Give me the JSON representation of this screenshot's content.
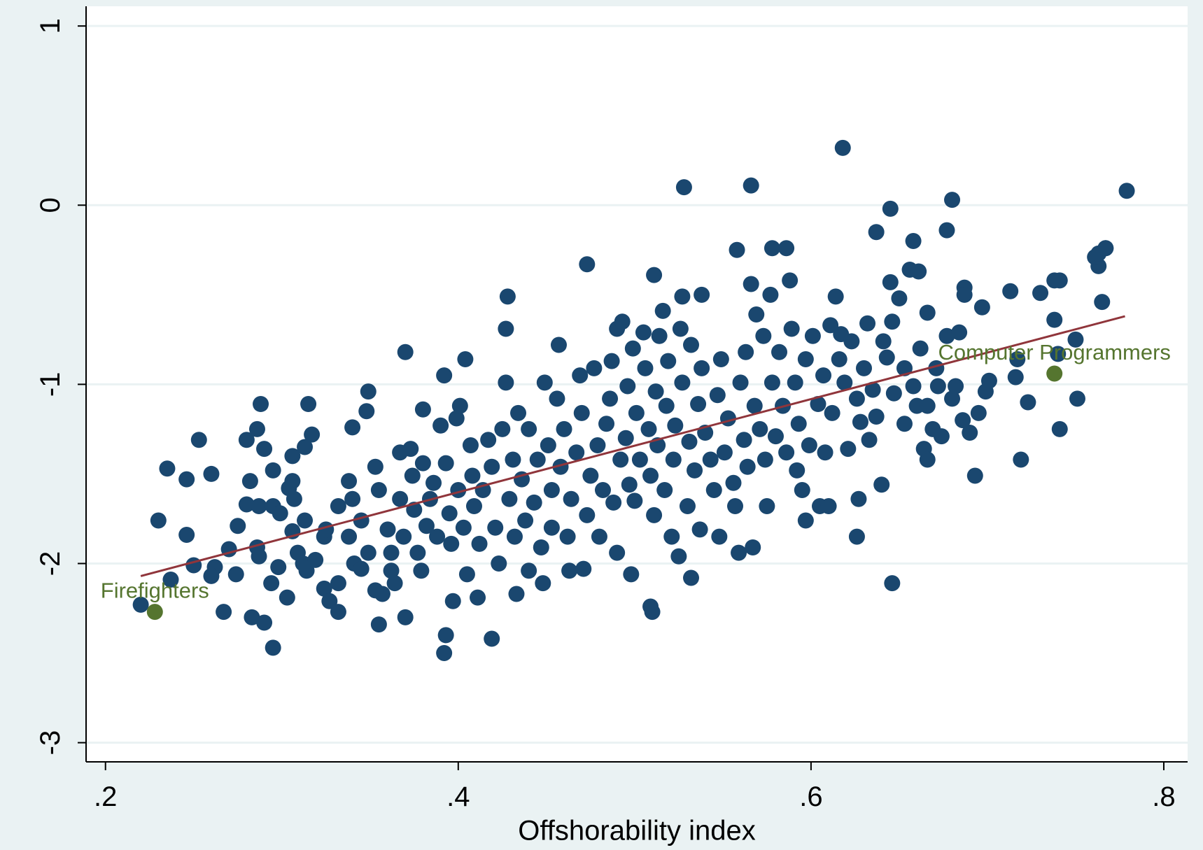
{
  "chart_data": {
    "type": "scatter",
    "x_label": "Offshorability index",
    "xlim": [
      0.189,
      0.8135
    ],
    "ylim": [
      -3.107,
      1.11
    ],
    "xticks": [
      {
        "value": 0.2,
        "label": ".2"
      },
      {
        "value": 0.4,
        "label": ".4"
      },
      {
        "value": 0.6,
        "label": ".6"
      },
      {
        "value": 0.8,
        "label": ".8"
      }
    ],
    "yticks": [
      1,
      0,
      -1,
      -2,
      -3
    ],
    "grid": true,
    "color": "#1a476f",
    "x": [
      0.618,
      0.528,
      0.566,
      0.779,
      0.68,
      0.645,
      0.637,
      0.677,
      0.658,
      0.558,
      0.578,
      0.586,
      0.767,
      0.473,
      0.511,
      0.428,
      0.427,
      0.37,
      0.404,
      0.527,
      0.538,
      0.713,
      0.687,
      0.741,
      0.763,
      0.697,
      0.765,
      0.666,
      0.738,
      0.751,
      0.741,
      0.719,
      0.693,
      0.646,
      0.626,
      0.627,
      0.64,
      0.532,
      0.51,
      0.419,
      0.392,
      0.393,
      0.355,
      0.37,
      0.295,
      0.29,
      0.283,
      0.267,
      0.22,
      0.237,
      0.23,
      0.235,
      0.246,
      0.253,
      0.26,
      0.246,
      0.25,
      0.262,
      0.26,
      0.274,
      0.27,
      0.275,
      0.28,
      0.28,
      0.286,
      0.288,
      0.29,
      0.282,
      0.295,
      0.287,
      0.295,
      0.299,
      0.286,
      0.287,
      0.294,
      0.303,
      0.298,
      0.306,
      0.315,
      0.317,
      0.313,
      0.306,
      0.304,
      0.307,
      0.313,
      0.306,
      0.309,
      0.314,
      0.312,
      0.324,
      0.327,
      0.332,
      0.34,
      0.349,
      0.348,
      0.338,
      0.34,
      0.324,
      0.332,
      0.332,
      0.338,
      0.341,
      0.345,
      0.349,
      0.353,
      0.355,
      0.357,
      0.36,
      0.362,
      0.364,
      0.367,
      0.367,
      0.369,
      0.373,
      0.374,
      0.375,
      0.377,
      0.379,
      0.38,
      0.38,
      0.382,
      0.384,
      0.386,
      0.388,
      0.39,
      0.392,
      0.393,
      0.395,
      0.396,
      0.397,
      0.399,
      0.4,
      0.401,
      0.403,
      0.405,
      0.407,
      0.408,
      0.409,
      0.411,
      0.412,
      0.414,
      0.417,
      0.419,
      0.421,
      0.423,
      0.425,
      0.427,
      0.429,
      0.431,
      0.432,
      0.433,
      0.434,
      0.436,
      0.438,
      0.44,
      0.44,
      0.443,
      0.445,
      0.447,
      0.448,
      0.449,
      0.451,
      0.453,
      0.453,
      0.456,
      0.457,
      0.458,
      0.46,
      0.462,
      0.463,
      0.464,
      0.467,
      0.469,
      0.47,
      0.471,
      0.473,
      0.475,
      0.477,
      0.479,
      0.48,
      0.482,
      0.484,
      0.486,
      0.487,
      0.488,
      0.49,
      0.49,
      0.492,
      0.493,
      0.495,
      0.496,
      0.497,
      0.498,
      0.499,
      0.5,
      0.501,
      0.503,
      0.505,
      0.506,
      0.508,
      0.509,
      0.509,
      0.511,
      0.512,
      0.513,
      0.514,
      0.516,
      0.517,
      0.518,
      0.519,
      0.521,
      0.522,
      0.523,
      0.525,
      0.526,
      0.527,
      0.53,
      0.531,
      0.532,
      0.534,
      0.536,
      0.537,
      0.538,
      0.54,
      0.543,
      0.545,
      0.547,
      0.548,
      0.549,
      0.551,
      0.553,
      0.556,
      0.557,
      0.559,
      0.56,
      0.562,
      0.563,
      0.564,
      0.566,
      0.567,
      0.568,
      0.569,
      0.571,
      0.573,
      0.574,
      0.575,
      0.577,
      0.578,
      0.58,
      0.582,
      0.584,
      0.586,
      0.588,
      0.589,
      0.591,
      0.592,
      0.593,
      0.595,
      0.597,
      0.597,
      0.599,
      0.601,
      0.604,
      0.605,
      0.607,
      0.608,
      0.61,
      0.611,
      0.612,
      0.614,
      0.616,
      0.617,
      0.619,
      0.621,
      0.623,
      0.626,
      0.628,
      0.63,
      0.632,
      0.633,
      0.635,
      0.637,
      0.641,
      0.643,
      0.645,
      0.646,
      0.647,
      0.65,
      0.653,
      0.653,
      0.656,
      0.658,
      0.66,
      0.661,
      0.662,
      0.664,
      0.666,
      0.666,
      0.669,
      0.671,
      0.672,
      0.674,
      0.677,
      0.68,
      0.682,
      0.684,
      0.686,
      0.687,
      0.69,
      0.695,
      0.699,
      0.701,
      0.716,
      0.717,
      0.723,
      0.73,
      0.738,
      0.74,
      0.75,
      0.761,
      0.763,
      0.767,
      0.319,
      0.325,
      0.345,
      0.362,
      0.353
    ],
    "y": [
      0.32,
      0.1,
      0.11,
      0.08,
      0.03,
      -0.02,
      -0.15,
      -0.14,
      -0.2,
      -0.25,
      -0.24,
      -0.24,
      -0.24,
      -0.33,
      -0.39,
      -0.51,
      -0.69,
      -0.82,
      -0.86,
      -0.51,
      -0.5,
      -0.48,
      -0.46,
      -0.42,
      -0.34,
      -0.57,
      -0.54,
      -0.6,
      -0.64,
      -1.08,
      -1.25,
      -1.42,
      -1.51,
      -2.11,
      -1.85,
      -1.64,
      -1.56,
      -2.08,
      -2.27,
      -2.42,
      -2.5,
      -2.4,
      -2.34,
      -2.3,
      -2.47,
      -2.33,
      -2.3,
      -2.27,
      -2.23,
      -2.09,
      -1.76,
      -1.47,
      -1.53,
      -1.31,
      -1.5,
      -1.84,
      -2.01,
      -2.02,
      -2.07,
      -2.06,
      -1.92,
      -1.79,
      -1.67,
      -1.31,
      -1.25,
      -1.11,
      -1.36,
      -1.54,
      -1.48,
      -1.68,
      -1.68,
      -1.72,
      -1.91,
      -1.96,
      -2.11,
      -2.19,
      -2.02,
      -1.4,
      -1.11,
      -1.28,
      -1.35,
      -1.54,
      -1.58,
      -1.64,
      -1.76,
      -1.82,
      -1.94,
      -2.04,
      -2.0,
      -2.14,
      -2.21,
      -2.27,
      -1.24,
      -1.04,
      -1.15,
      -1.54,
      -1.64,
      -1.85,
      -1.68,
      -2.11,
      -1.85,
      -2.0,
      -1.76,
      -1.94,
      -1.46,
      -1.59,
      -2.17,
      -1.81,
      -1.94,
      -2.11,
      -1.38,
      -1.64,
      -1.85,
      -1.36,
      -1.51,
      -1.7,
      -1.94,
      -2.04,
      -1.14,
      -1.44,
      -1.79,
      -1.64,
      -1.55,
      -1.85,
      -1.23,
      -0.95,
      -1.44,
      -1.72,
      -1.89,
      -2.21,
      -1.19,
      -1.59,
      -1.12,
      -1.8,
      -2.06,
      -1.34,
      -1.51,
      -1.68,
      -2.19,
      -1.89,
      -1.59,
      -1.31,
      -1.46,
      -1.8,
      -2.0,
      -1.25,
      -0.99,
      -1.64,
      -1.42,
      -1.85,
      -2.17,
      -1.16,
      -1.53,
      -1.76,
      -2.04,
      -1.25,
      -1.66,
      -1.42,
      -1.91,
      -2.11,
      -0.99,
      -1.34,
      -1.59,
      -1.8,
      -1.08,
      -0.78,
      -1.46,
      -1.25,
      -1.85,
      -2.04,
      -1.64,
      -1.38,
      -0.95,
      -1.16,
      -2.03,
      -1.73,
      -1.51,
      -0.91,
      -1.34,
      -1.85,
      -1.59,
      -1.22,
      -1.08,
      -0.87,
      -1.66,
      -0.69,
      -1.94,
      -1.42,
      -0.65,
      -1.3,
      -1.01,
      -1.56,
      -2.06,
      -0.8,
      -1.65,
      -1.16,
      -1.42,
      -0.71,
      -0.91,
      -1.25,
      -1.51,
      -2.24,
      -1.73,
      -1.04,
      -1.34,
      -0.73,
      -0.59,
      -1.59,
      -1.12,
      -0.87,
      -1.85,
      -1.42,
      -1.23,
      -1.96,
      -0.69,
      -0.99,
      -1.68,
      -1.32,
      -0.78,
      -1.48,
      -1.11,
      -1.81,
      -0.91,
      -1.27,
      -1.42,
      -1.59,
      -1.06,
      -1.85,
      -0.86,
      -1.38,
      -1.19,
      -1.55,
      -1.68,
      -1.94,
      -0.99,
      -1.31,
      -0.82,
      -1.46,
      -0.44,
      -1.91,
      -1.12,
      -0.61,
      -1.25,
      -0.73,
      -1.42,
      -1.68,
      -0.5,
      -0.99,
      -1.29,
      -0.82,
      -1.12,
      -1.38,
      -0.42,
      -0.69,
      -0.99,
      -1.48,
      -1.22,
      -1.59,
      -1.76,
      -0.86,
      -1.34,
      -0.73,
      -1.11,
      -1.68,
      -0.95,
      -1.38,
      -1.68,
      -0.67,
      -1.16,
      -0.51,
      -0.86,
      -0.72,
      -0.99,
      -1.36,
      -0.76,
      -1.08,
      -1.21,
      -0.91,
      -0.66,
      -1.31,
      -1.03,
      -1.18,
      -0.76,
      -0.85,
      -0.43,
      -0.65,
      -1.05,
      -0.52,
      -0.91,
      -1.22,
      -0.36,
      -1.01,
      -1.12,
      -0.37,
      -0.8,
      -1.36,
      -1.42,
      -1.12,
      -1.25,
      -0.91,
      -1.01,
      -1.29,
      -0.73,
      -1.08,
      -1.01,
      -0.71,
      -1.2,
      -0.5,
      -1.27,
      -1.16,
      -1.04,
      -0.98,
      -0.96,
      -0.86,
      -1.1,
      -0.49,
      -0.42,
      -0.83,
      -0.75,
      -0.29,
      -0.27,
      -0.24,
      -1.98,
      -1.81,
      -2.03,
      -2.04,
      -2.15
    ],
    "fit_line": {
      "color": "#90353b",
      "x": [
        0.22,
        0.778
      ],
      "y": [
        -2.07,
        -0.62
      ]
    },
    "highlight_color": "#55752f",
    "highlights": [
      {
        "label": "Firefighters",
        "x": 0.228,
        "y": -2.27
      },
      {
        "label": "Computer Programmers",
        "x": 0.738,
        "y": -0.94
      }
    ]
  }
}
